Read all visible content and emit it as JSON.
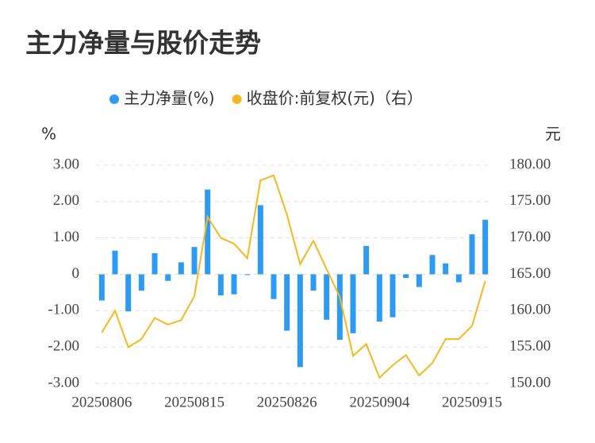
{
  "chart_data": {
    "type": "bar_line",
    "title": "主力净量与股价走势",
    "y_label": "%",
    "y2_label": "元",
    "categories": [
      "20250806",
      null,
      null,
      null,
      null,
      null,
      null,
      "20250815",
      null,
      null,
      null,
      null,
      null,
      null,
      "20250826",
      null,
      null,
      null,
      null,
      null,
      null,
      "20250904",
      null,
      null,
      null,
      null,
      null,
      null,
      "20250915",
      null
    ],
    "series": [
      {
        "name": "主力净量(%)",
        "color": "#2e9bf0",
        "type": "bar",
        "axis": "y",
        "values": [
          -0.72,
          0.65,
          -1.02,
          -0.45,
          0.58,
          -0.18,
          0.33,
          0.75,
          2.33,
          -0.58,
          -0.55,
          -0.02,
          1.9,
          -0.68,
          -1.55,
          -2.55,
          -0.45,
          -1.25,
          -1.8,
          -1.62,
          0.78,
          -1.3,
          -1.18,
          -0.1,
          -0.35,
          0.53,
          0.3,
          -0.22,
          1.1,
          1.5
        ]
      },
      {
        "name": "收盘价:前复权(元)（右）",
        "color": "#f5b823",
        "type": "line",
        "axis": "y2",
        "values": [
          157.0,
          160.0,
          155.0,
          156.1,
          159.0,
          158.1,
          158.7,
          162.0,
          172.9,
          170.0,
          169.2,
          167.2,
          177.9,
          178.6,
          173.2,
          166.4,
          169.6,
          165.7,
          161.9,
          153.8,
          155.4,
          150.8,
          152.5,
          153.9,
          151.1,
          152.8,
          156.1,
          156.1,
          157.9,
          164.1
        ]
      }
    ],
    "ylim": [
      -3,
      3
    ],
    "yticks": [
      {
        "value": -3,
        "label": "-3.00"
      },
      {
        "value": -2,
        "label": "-2.00"
      },
      {
        "value": -1,
        "label": "-1.00"
      },
      0,
      {
        "value": 1,
        "label": "1.00"
      },
      {
        "value": 2,
        "label": "2.00"
      },
      {
        "value": 3,
        "label": "3.00"
      }
    ],
    "y2lim": [
      150,
      180
    ],
    "y2ticks": [
      {
        "value": 150,
        "label": "150.00"
      },
      {
        "value": 155,
        "label": "155.00"
      },
      {
        "value": 160,
        "label": "160.00"
      },
      {
        "value": 165,
        "label": "165.00"
      },
      {
        "value": 170,
        "label": "170.00"
      },
      {
        "value": 175,
        "label": "175.00"
      },
      {
        "value": 180,
        "label": "180.00"
      }
    ],
    "grid": true,
    "legend": "top"
  }
}
